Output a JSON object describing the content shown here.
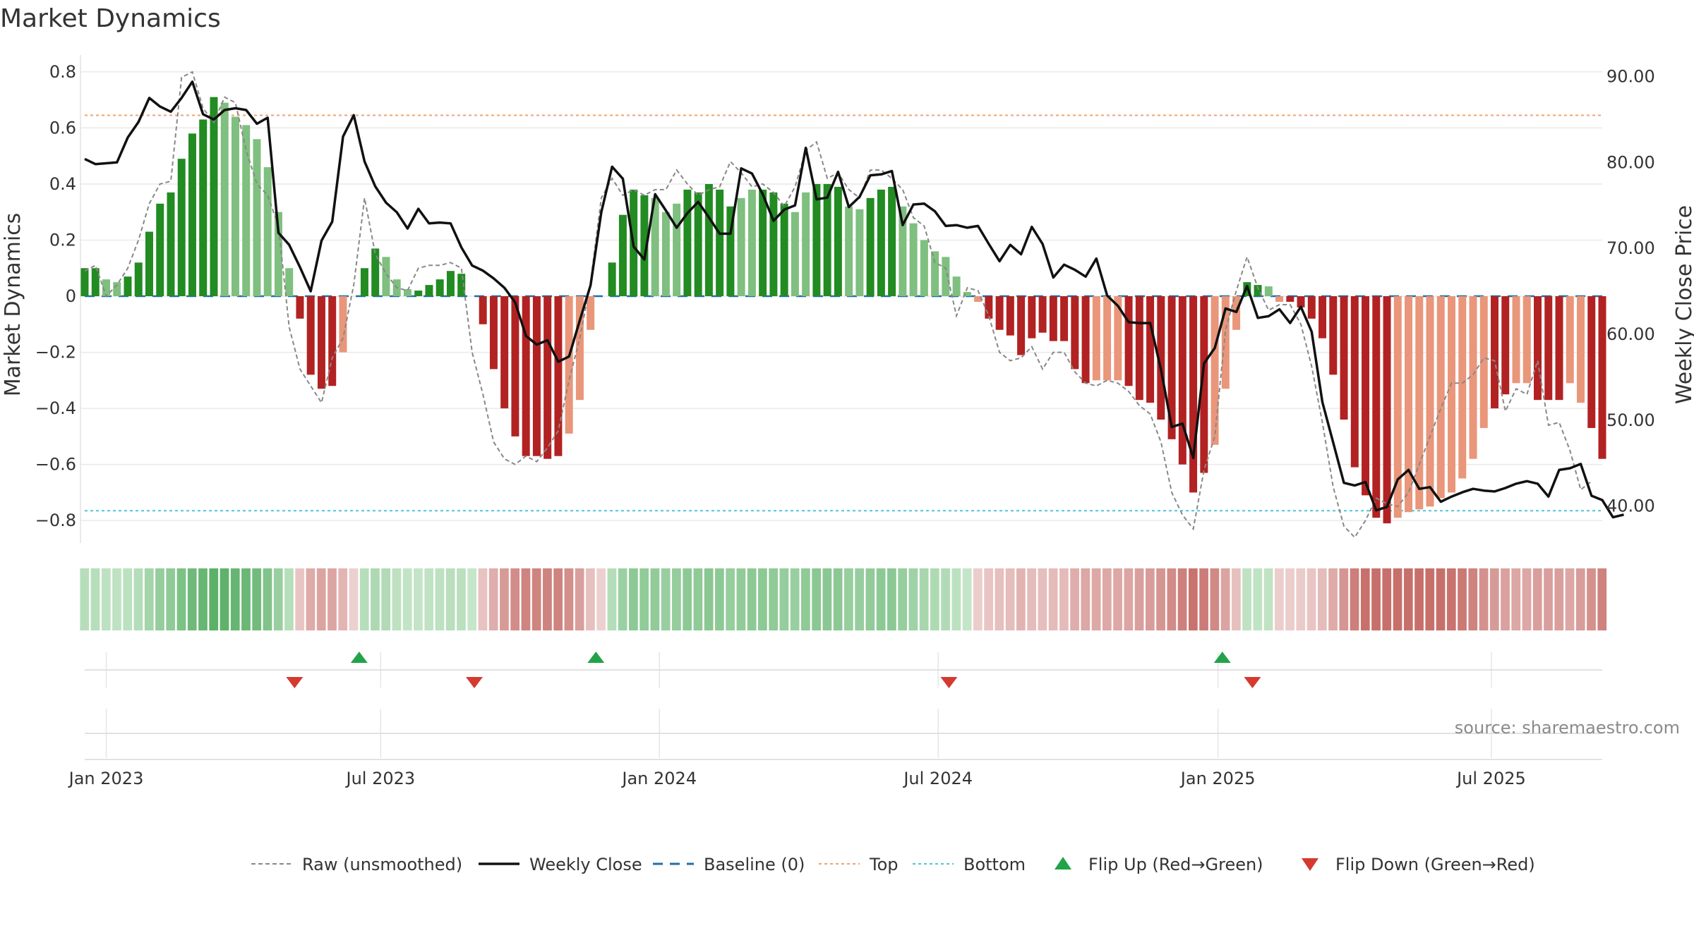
{
  "chart_data": {
    "type": "bar",
    "title": "Market Dynamics",
    "ylabel": "Market Dynamics",
    "y2label": "Weekly Close Price",
    "ylim": [
      -0.88,
      0.86
    ],
    "y2lim": [
      35.7,
      92.5
    ],
    "yticks": [
      0.8,
      0.6,
      0.4,
      0.2,
      0,
      -0.2,
      -0.4,
      -0.6,
      -0.8
    ],
    "ytick_labels": [
      "0.8",
      "0.6",
      "0.4",
      "0.2",
      "0",
      "−0.2",
      "−0.4",
      "−0.6",
      "−0.8"
    ],
    "y2ticks": [
      90,
      80,
      70,
      60,
      50,
      40
    ],
    "y2tick_labels": [
      "90.00",
      "80.00",
      "70.00",
      "60.00",
      "50.00",
      "40.00"
    ],
    "x_start_week": 0,
    "x_end_week": 141,
    "xticks": [
      {
        "week": 2,
        "label": "Jan 2023"
      },
      {
        "week": 27.5,
        "label": "Jul 2023"
      },
      {
        "week": 53.4,
        "label": "Jan 2024"
      },
      {
        "week": 79.3,
        "label": "Jul 2024"
      },
      {
        "week": 105.3,
        "label": "Jan 2025"
      },
      {
        "week": 130.7,
        "label": "Jul 2025"
      }
    ],
    "top_level": 0.645,
    "bottom_level": -0.765,
    "baseline": 0,
    "bars": [
      0.1,
      0.1,
      0.06,
      0.05,
      0.07,
      0.12,
      0.23,
      0.33,
      0.37,
      0.49,
      0.58,
      0.63,
      0.71,
      0.69,
      0.64,
      0.61,
      0.56,
      0.46,
      0.3,
      0.1,
      -0.08,
      -0.28,
      -0.33,
      -0.32,
      -0.2,
      0,
      0.1,
      0.17,
      0.14,
      0.06,
      0.025,
      0.02,
      0.04,
      0.06,
      0.09,
      0.08,
      0,
      -0.1,
      -0.26,
      -0.4,
      -0.5,
      -0.57,
      -0.57,
      -0.58,
      -0.57,
      -0.49,
      -0.37,
      -0.12,
      0,
      0.12,
      0.29,
      0.38,
      0.36,
      0.35,
      0.3,
      0.33,
      0.38,
      0.37,
      0.4,
      0.38,
      0.32,
      0.35,
      0.38,
      0.38,
      0.37,
      0.33,
      0.3,
      0.37,
      0.4,
      0.4,
      0.39,
      0.32,
      0.31,
      0.35,
      0.38,
      0.39,
      0.32,
      0.26,
      0.2,
      0.16,
      0.14,
      0.07,
      0.015,
      -0.02,
      -0.08,
      -0.12,
      -0.14,
      -0.21,
      -0.15,
      -0.13,
      -0.16,
      -0.16,
      -0.26,
      -0.31,
      -0.3,
      -0.3,
      -0.3,
      -0.32,
      -0.37,
      -0.38,
      -0.44,
      -0.51,
      -0.6,
      -0.7,
      -0.63,
      -0.53,
      -0.33,
      -0.12,
      0.05,
      0.04,
      0.035,
      -0.02,
      -0.02,
      -0.04,
      -0.08,
      -0.15,
      -0.28,
      -0.44,
      -0.61,
      -0.71,
      -0.79,
      -0.81,
      -0.79,
      -0.77,
      -0.76,
      -0.75,
      -0.72,
      -0.7,
      -0.65,
      -0.58,
      -0.47,
      -0.4,
      -0.35,
      -0.31,
      -0.31,
      -0.37,
      -0.37,
      -0.37,
      -0.31,
      -0.38,
      -0.47,
      -0.58
    ],
    "bar_shades": [
      [
        0,
        1,
        "dark"
      ],
      [
        2,
        3,
        "light"
      ],
      [
        4,
        12,
        "dark"
      ],
      [
        13,
        18,
        "light"
      ],
      [
        19,
        19,
        "light"
      ],
      [
        20,
        23,
        "dark"
      ],
      [
        24,
        24,
        "light"
      ],
      [
        25,
        25,
        "none"
      ],
      [
        26,
        27,
        "dark"
      ],
      [
        28,
        30,
        "light"
      ],
      [
        31,
        35,
        "dark"
      ],
      [
        36,
        36,
        "none"
      ],
      [
        37,
        44,
        "dark"
      ],
      [
        45,
        47,
        "light"
      ],
      [
        48,
        48,
        "none"
      ],
      [
        49,
        52,
        "dark"
      ],
      [
        53,
        55,
        "light"
      ],
      [
        56,
        60,
        "dark"
      ],
      [
        61,
        62,
        "light"
      ],
      [
        63,
        65,
        "dark"
      ],
      [
        66,
        67,
        "light"
      ],
      [
        68,
        70,
        "dark"
      ],
      [
        71,
        72,
        "light"
      ],
      [
        73,
        75,
        "dark"
      ],
      [
        76,
        83,
        "light"
      ],
      [
        84,
        93,
        "dark"
      ],
      [
        94,
        96,
        "light"
      ],
      [
        97,
        104,
        "dark"
      ],
      [
        105,
        107,
        "light"
      ],
      [
        108,
        109,
        "dark"
      ],
      [
        110,
        111,
        "light"
      ],
      [
        112,
        121,
        "dark"
      ],
      [
        122,
        130,
        "light"
      ],
      [
        131,
        132,
        "dark"
      ],
      [
        133,
        134,
        "light"
      ],
      [
        135,
        137,
        "dark"
      ],
      [
        138,
        139,
        "light"
      ],
      [
        140,
        141,
        "dark"
      ]
    ],
    "raw": [
      0.09,
      0.11,
      0.0,
      0.04,
      0.1,
      0.2,
      0.33,
      0.4,
      0.41,
      0.78,
      0.8,
      0.67,
      0.62,
      0.71,
      0.69,
      0.52,
      0.4,
      0.36,
      0.25,
      -0.11,
      -0.26,
      -0.32,
      -0.38,
      -0.22,
      -0.15,
      0.04,
      0.35,
      0.15,
      0.08,
      0.03,
      0.02,
      0.1,
      0.11,
      0.11,
      0.12,
      0.1,
      -0.2,
      -0.35,
      -0.52,
      -0.58,
      -0.6,
      -0.57,
      -0.59,
      -0.54,
      -0.48,
      -0.3,
      -0.15,
      0.05,
      0.35,
      0.42,
      0.36,
      0.38,
      0.36,
      0.38,
      0.38,
      0.45,
      0.4,
      0.36,
      0.38,
      0.39,
      0.48,
      0.44,
      0.39,
      0.4,
      0.37,
      0.32,
      0.39,
      0.52,
      0.55,
      0.42,
      0.44,
      0.38,
      0.35,
      0.45,
      0.45,
      0.42,
      0.38,
      0.28,
      0.25,
      0.12,
      0.1,
      -0.07,
      0.03,
      0.02,
      -0.07,
      -0.2,
      -0.23,
      -0.22,
      -0.18,
      -0.26,
      -0.2,
      -0.2,
      -0.27,
      -0.31,
      -0.32,
      -0.3,
      -0.31,
      -0.34,
      -0.39,
      -0.42,
      -0.52,
      -0.7,
      -0.78,
      -0.83,
      -0.62,
      -0.5,
      -0.12,
      0.02,
      0.14,
      0.03,
      -0.05,
      -0.03,
      -0.03,
      -0.1,
      -0.25,
      -0.45,
      -0.68,
      -0.82,
      -0.86,
      -0.8,
      -0.72,
      -0.74,
      -0.75,
      -0.7,
      -0.6,
      -0.5,
      -0.4,
      -0.31,
      -0.31,
      -0.28,
      -0.22,
      -0.23,
      -0.41,
      -0.33,
      -0.35,
      -0.23,
      -0.46,
      -0.45,
      -0.55,
      -0.69,
      -0.66
    ],
    "close": [
      80.4,
      79.8,
      79.9,
      80.0,
      82.9,
      84.7,
      87.5,
      86.5,
      85.9,
      87.5,
      89.4,
      85.6,
      85.0,
      86.1,
      86.3,
      86.1,
      84.5,
      85.2,
      71.8,
      70.4,
      67.8,
      65.0,
      70.9,
      73.1,
      83.0,
      85.5,
      80.1,
      77.2,
      75.3,
      74.2,
      72.3,
      74.6,
      72.9,
      73.0,
      72.9,
      70.1,
      68.0,
      67.4,
      66.5,
      65.4,
      63.7,
      59.8,
      58.8,
      59.3,
      56.8,
      57.4,
      61.6,
      65.7,
      74.2,
      79.5,
      78.1,
      70.2,
      68.7,
      76.3,
      74.4,
      72.4,
      74.1,
      75.4,
      73.6,
      71.7,
      71.7,
      79.3,
      78.7,
      76.3,
      73.2,
      74.5,
      75.0,
      81.7,
      75.7,
      75.9,
      78.9,
      74.8,
      76.0,
      78.5,
      78.6,
      79.0,
      72.7,
      75.1,
      75.2,
      74.3,
      72.6,
      72.7,
      72.4,
      72.6,
      70.5,
      68.5,
      70.4,
      69.3,
      72.5,
      70.5,
      66.6,
      68.1,
      67.5,
      66.7,
      68.8,
      64.5,
      63.3,
      61.4,
      61.3,
      61.3,
      55.9,
      49.2,
      49.6,
      45.6,
      56.6,
      58.4,
      63.0,
      62.6,
      65.6,
      61.9,
      62.1,
      62.9,
      61.3,
      63.2,
      60.3,
      52.1,
      47.4,
      42.7,
      42.4,
      42.8,
      39.5,
      39.9,
      43.1,
      44.2,
      42.0,
      42.2,
      40.5,
      41.1,
      41.6,
      42.0,
      41.8,
      41.7,
      42.1,
      42.6,
      42.9,
      42.6,
      41.1,
      44.2,
      44.4,
      44.9,
      41.2,
      40.7,
      38.7,
      39.0
    ],
    "flips_up_weeks": [
      25.5,
      47.5,
      105.7
    ],
    "flips_down_weeks": [
      19.5,
      36.2,
      80.3,
      108.5
    ],
    "heat_strip": {
      "dark_green": "#5aaf67",
      "light_green": "#c6e6c9",
      "dark_red": "#c7706b",
      "light_red": "#ecd0cf"
    },
    "legend": [
      "Raw (unsmoothed)",
      "Weekly Close",
      "Baseline (0)",
      "Top",
      "Bottom",
      "Flip Up (Red→Green)",
      "Flip Down (Green→Red)"
    ],
    "legend_placement": "bottom",
    "grid": true,
    "colors": {
      "green_dark": "#228b22",
      "green_light": "#7fbf7f",
      "red_dark": "#b22222",
      "red_light": "#e9967a",
      "close": "#111111",
      "raw": "#888888",
      "baseline": "#1f6fa8",
      "top": "#f0a36b",
      "bottom": "#4dc6d6",
      "flip_up": "#22a34a",
      "flip_down": "#d43a2f"
    }
  },
  "source_text": "source: sharemaestro.com"
}
